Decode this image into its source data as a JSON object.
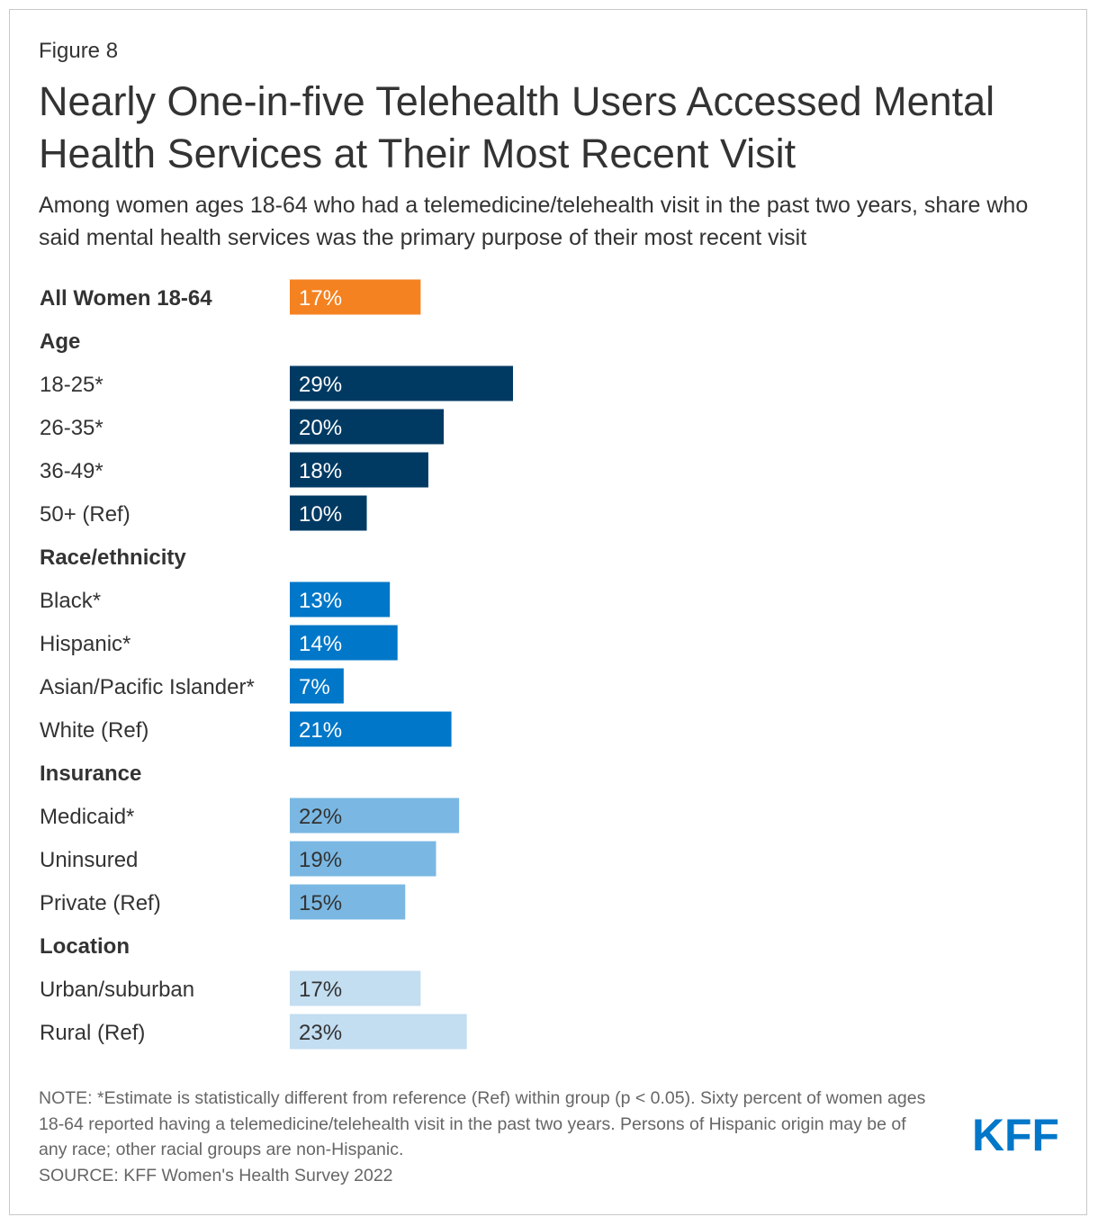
{
  "figure_label": "Figure 8",
  "title": "Nearly One-in-five Telehealth Users Accessed Mental Health Services at Their Most Recent Visit",
  "subtitle": "Among women ages 18-64 who had a telemedicine/telehealth visit in the past two years, share who said mental health services was the primary purpose of their most recent visit",
  "chart_data": {
    "type": "bar",
    "orientation": "horizontal",
    "unit": "%",
    "xlim": [
      0,
      100
    ],
    "grid": false,
    "rows": [
      {
        "kind": "bar",
        "label": "All Women 18-64",
        "bold": true,
        "value": 17,
        "value_label": "17%",
        "color": "#f58220",
        "text_color": "#ffffff"
      },
      {
        "kind": "group",
        "label": "Age"
      },
      {
        "kind": "bar",
        "label": "18-25*",
        "value": 29,
        "value_label": "29%",
        "color": "#003a63",
        "text_color": "#ffffff"
      },
      {
        "kind": "bar",
        "label": "26-35*",
        "value": 20,
        "value_label": "20%",
        "color": "#003a63",
        "text_color": "#ffffff"
      },
      {
        "kind": "bar",
        "label": "36-49*",
        "value": 18,
        "value_label": "18%",
        "color": "#003a63",
        "text_color": "#ffffff"
      },
      {
        "kind": "bar",
        "label": "50+ (Ref)",
        "value": 10,
        "value_label": "10%",
        "color": "#003a63",
        "text_color": "#ffffff"
      },
      {
        "kind": "group",
        "label": "Race/ethnicity"
      },
      {
        "kind": "bar",
        "label": "Black*",
        "value": 13,
        "value_label": "13%",
        "color": "#0077c8",
        "text_color": "#ffffff"
      },
      {
        "kind": "bar",
        "label": "Hispanic*",
        "value": 14,
        "value_label": "14%",
        "color": "#0077c8",
        "text_color": "#ffffff"
      },
      {
        "kind": "bar",
        "label": "Asian/Pacific Islander*",
        "value": 7,
        "value_label": "7%",
        "color": "#0077c8",
        "text_color": "#ffffff"
      },
      {
        "kind": "bar",
        "label": "White (Ref)",
        "value": 21,
        "value_label": "21%",
        "color": "#0077c8",
        "text_color": "#ffffff"
      },
      {
        "kind": "group",
        "label": "Insurance"
      },
      {
        "kind": "bar",
        "label": "Medicaid*",
        "value": 22,
        "value_label": "22%",
        "color": "#7ab8e3",
        "text_color": "#333333"
      },
      {
        "kind": "bar",
        "label": "Uninsured",
        "value": 19,
        "value_label": "19%",
        "color": "#7ab8e3",
        "text_color": "#333333"
      },
      {
        "kind": "bar",
        "label": "Private (Ref)",
        "value": 15,
        "value_label": "15%",
        "color": "#7ab8e3",
        "text_color": "#333333"
      },
      {
        "kind": "group",
        "label": "Location"
      },
      {
        "kind": "bar",
        "label": "Urban/suburban",
        "value": 17,
        "value_label": "17%",
        "color": "#c3ddf1",
        "text_color": "#333333"
      },
      {
        "kind": "bar",
        "label": "Rural (Ref)",
        "value": 23,
        "value_label": "23%",
        "color": "#c3ddf1",
        "text_color": "#333333"
      }
    ]
  },
  "note": "NOTE: *Estimate is statistically different from reference (Ref) within group (p < 0.05). Sixty percent of women ages 18-64 reported having a telemedicine/telehealth visit in the past two years. Persons of Hispanic origin may be of any race; other racial groups are non-Hispanic.",
  "source": "SOURCE: KFF Women's Health Survey 2022",
  "logo": {
    "text": "KFF",
    "color": "#0077c8"
  }
}
